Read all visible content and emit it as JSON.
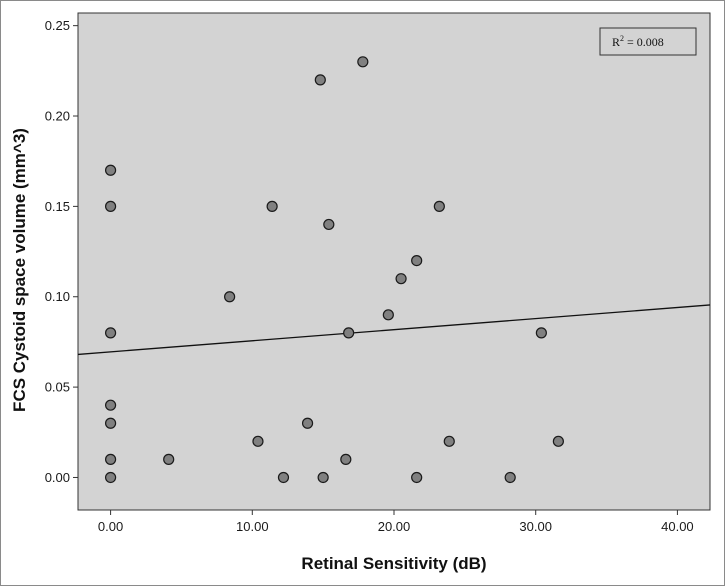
{
  "chart_data": {
    "type": "scatter",
    "xlabel": "Retinal Sensitivity (dB)",
    "ylabel": "FCS Cystoid space volume (mm^3)",
    "xlim": [
      -2.3,
      42.3
    ],
    "ylim": [
      -0.018,
      0.257
    ],
    "x_ticks": [
      0,
      10,
      20,
      30,
      40
    ],
    "x_tick_labels": [
      "0.00",
      "10.00",
      "20.00",
      "30.00",
      "40.00"
    ],
    "y_ticks": [
      0,
      0.05,
      0.1,
      0.15,
      0.2,
      0.25
    ],
    "y_tick_labels": [
      "0.00",
      "0.05",
      "0.10",
      "0.15",
      "0.20",
      "0.25"
    ],
    "grid": false,
    "annotation": {
      "r2_label": "R",
      "r2_exponent": "2",
      "r2_value": " = 0.008"
    },
    "fit_line": {
      "intercept": 0.0695,
      "slope": 0.000614
    },
    "points": [
      {
        "x": 0,
        "y": 0.17
      },
      {
        "x": 0,
        "y": 0.15
      },
      {
        "x": 0,
        "y": 0.08
      },
      {
        "x": 0,
        "y": 0.04
      },
      {
        "x": 0,
        "y": 0.03
      },
      {
        "x": 0,
        "y": 0.01
      },
      {
        "x": 0,
        "y": 0.0
      },
      {
        "x": 4.1,
        "y": 0.01
      },
      {
        "x": 8.4,
        "y": 0.1
      },
      {
        "x": 10.4,
        "y": 0.02
      },
      {
        "x": 11.4,
        "y": 0.15
      },
      {
        "x": 12.2,
        "y": 0.0
      },
      {
        "x": 13.9,
        "y": 0.03
      },
      {
        "x": 14.8,
        "y": 0.22
      },
      {
        "x": 15.0,
        "y": 0.0
      },
      {
        "x": 15.4,
        "y": 0.14
      },
      {
        "x": 16.6,
        "y": 0.01
      },
      {
        "x": 16.8,
        "y": 0.08
      },
      {
        "x": 17.8,
        "y": 0.23
      },
      {
        "x": 19.6,
        "y": 0.09
      },
      {
        "x": 20.5,
        "y": 0.11
      },
      {
        "x": 21.6,
        "y": 0.12
      },
      {
        "x": 21.6,
        "y": 0.0
      },
      {
        "x": 23.2,
        "y": 0.15
      },
      {
        "x": 23.9,
        "y": 0.02
      },
      {
        "x": 28.2,
        "y": 0.0
      },
      {
        "x": 30.4,
        "y": 0.08
      },
      {
        "x": 31.6,
        "y": 0.02
      }
    ],
    "colors": {
      "plot_bg": "#d3d3d3",
      "marker_fill": "#808080",
      "marker_edge": "#1a1a1a",
      "line": "#111111"
    }
  }
}
